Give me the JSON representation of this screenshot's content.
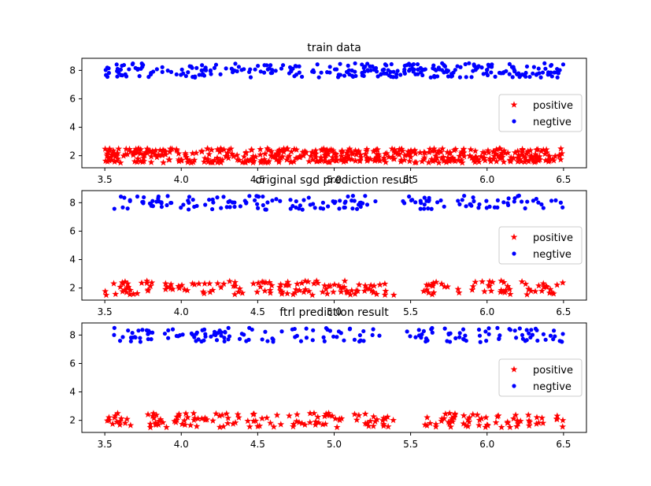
{
  "colors": {
    "positive": "#ff0000",
    "negtive": "#0000ff"
  },
  "chart_data": [
    {
      "type": "scatter",
      "title": "train data",
      "xlim": [
        3.35,
        6.65
      ],
      "ylim": [
        1.15,
        8.85
      ],
      "xticks": [
        3.5,
        4.0,
        4.5,
        5.0,
        5.5,
        6.0,
        6.5
      ],
      "yticks": [
        2,
        4,
        6,
        8
      ],
      "legend": "right",
      "series": [
        {
          "name": "positive",
          "marker": "star",
          "color": "#ff0000",
          "x_range": [
            3.5,
            6.5
          ],
          "y_range": [
            1.5,
            2.5
          ],
          "count": 500,
          "gaps": []
        },
        {
          "name": "negtive",
          "marker": "dot",
          "color": "#0000ff",
          "x_range": [
            3.5,
            6.5
          ],
          "y_range": [
            7.5,
            8.5
          ],
          "count": 300,
          "gaps": []
        }
      ]
    },
    {
      "type": "scatter",
      "title": "original sgd prediction result",
      "xlim": [
        3.35,
        6.65
      ],
      "ylim": [
        1.15,
        8.85
      ],
      "xticks": [
        3.5,
        4.0,
        4.5,
        5.0,
        5.5,
        6.0,
        6.5
      ],
      "yticks": [
        2,
        4,
        6,
        8
      ],
      "legend": "right",
      "series": [
        {
          "name": "positive",
          "marker": "star",
          "color": "#ff0000",
          "x_range": [
            3.5,
            6.5
          ],
          "y_range": [
            1.5,
            2.5
          ],
          "count": 190,
          "gaps": [
            [
              5.4,
              5.58
            ]
          ]
        },
        {
          "name": "negtive",
          "marker": "dot",
          "color": "#0000ff",
          "x_range": [
            3.55,
            6.5
          ],
          "y_range": [
            7.5,
            8.5
          ],
          "count": 170,
          "gaps": [
            [
              5.3,
              5.45
            ]
          ]
        }
      ]
    },
    {
      "type": "scatter",
      "title": "ftrl prediction result",
      "xlim": [
        3.35,
        6.65
      ],
      "ylim": [
        1.15,
        8.85
      ],
      "xticks": [
        3.5,
        4.0,
        4.5,
        5.0,
        5.5,
        6.0,
        6.5
      ],
      "yticks": [
        2,
        4,
        6,
        8
      ],
      "legend": "right",
      "series": [
        {
          "name": "positive",
          "marker": "star",
          "color": "#ff0000",
          "x_range": [
            3.5,
            6.5
          ],
          "y_range": [
            1.5,
            2.5
          ],
          "count": 190,
          "gaps": [
            [
              5.4,
              5.58
            ]
          ]
        },
        {
          "name": "negtive",
          "marker": "dot",
          "color": "#0000ff",
          "x_range": [
            3.55,
            6.5
          ],
          "y_range": [
            7.5,
            8.5
          ],
          "count": 170,
          "gaps": [
            [
              5.3,
              5.45
            ]
          ]
        }
      ]
    }
  ]
}
